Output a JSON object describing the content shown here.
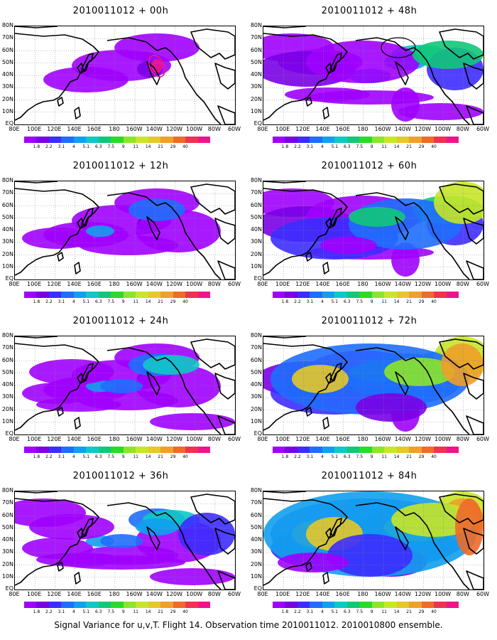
{
  "figure": {
    "caption": "Signal Variance for u,v,T. Flight 14. Observation time 2010011012. 2010010800 ensemble."
  },
  "panels": [
    {
      "title": "2010011012 + 00h",
      "level": 0
    },
    {
      "title": "2010011012 + 48h",
      "level": 4
    },
    {
      "title": "2010011012 + 12h",
      "level": 1
    },
    {
      "title": "2010011012 + 60h",
      "level": 5
    },
    {
      "title": "2010011012 + 24h",
      "level": 2
    },
    {
      "title": "2010011012 + 72h",
      "level": 6
    },
    {
      "title": "2010011012 + 36h",
      "level": 3
    },
    {
      "title": "2010011012 + 84h",
      "level": 7
    }
  ],
  "map": {
    "lat_labels": [
      "80N",
      "70N",
      "60N",
      "50N",
      "40N",
      "30N",
      "20N",
      "10N",
      "EQ"
    ],
    "lon_labels": [
      "80E",
      "100E",
      "120E",
      "140E",
      "160E",
      "180",
      "160W",
      "140W",
      "120W",
      "100W",
      "80W",
      "60W"
    ]
  },
  "colorbar": {
    "labels": [
      "1.8",
      "2.2",
      "3.1",
      "4",
      "5.1",
      "6.3",
      "7.5",
      "9",
      "11",
      "14",
      "21",
      "29",
      "40"
    ],
    "colors": [
      "#a000ff",
      "#7a00e6",
      "#3c2cff",
      "#1e6eff",
      "#10a0f0",
      "#10c8c8",
      "#10c878",
      "#28dc28",
      "#8ce628",
      "#c8e628",
      "#e6c828",
      "#f0a028",
      "#f06a28",
      "#f03250",
      "#f0148c"
    ]
  }
}
